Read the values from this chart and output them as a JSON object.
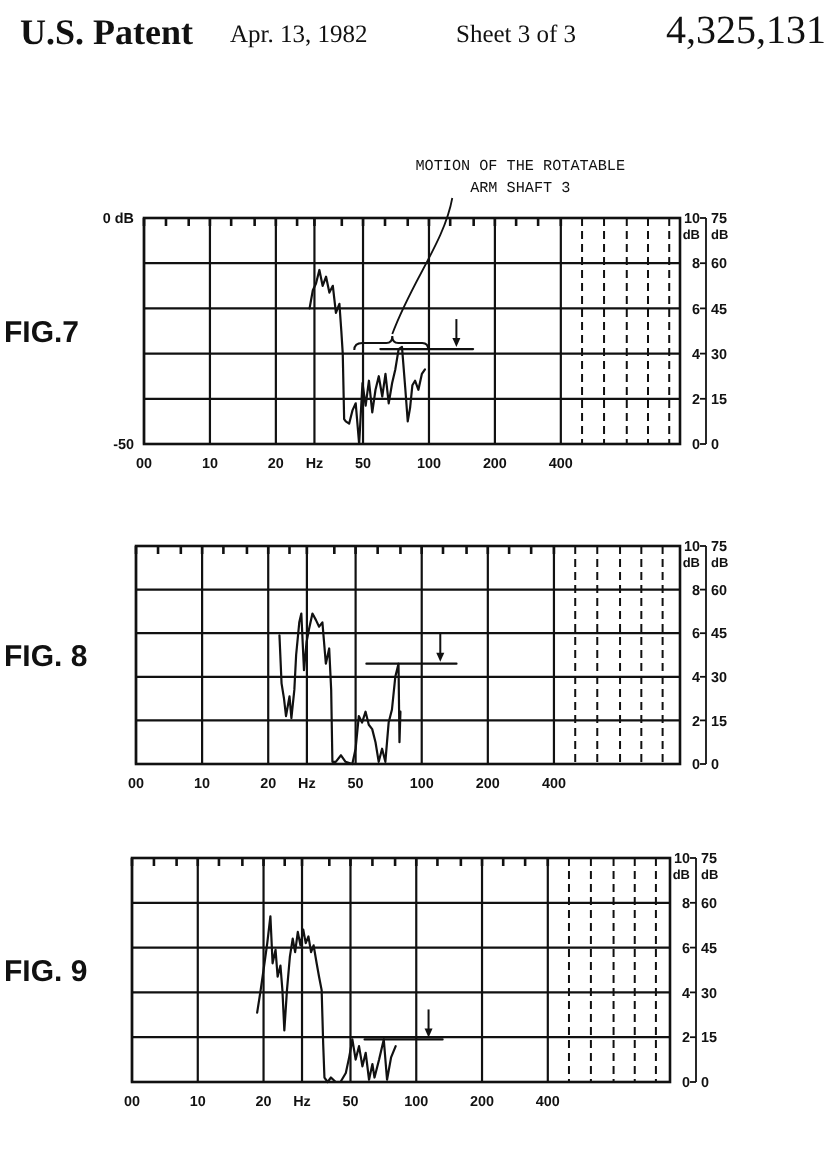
{
  "chart_data": [
    {
      "type": "line",
      "title": "FIG.7",
      "annotations": [
        "U.S. Patent",
        "Apr. 13, 1982",
        "Sheet 3 of 3",
        "4,325,131",
        {
          "text": "MOTION OF THE ROTATABLE ARM SHAFT 3",
          "x": 68,
          "y": 4.6
        }
      ],
      "log": "x",
      "xlim": [
        0,
        1400
      ],
      "xticks": [
        {
          "value": 0,
          "label": "00"
        },
        {
          "value": 6.3,
          "label": null
        },
        {
          "value": 8,
          "label": null
        },
        10,
        {
          "value": 12.5,
          "label": null
        },
        {
          "value": 16,
          "label": null
        },
        20,
        {
          "value": 25,
          "label": null
        },
        {
          "value": 30,
          "label": "Hz"
        },
        {
          "value": 40,
          "label": null
        },
        50,
        {
          "value": 63,
          "label": null
        },
        {
          "value": 80,
          "label": null
        },
        100,
        {
          "value": 125,
          "label": null
        },
        {
          "value": 160,
          "label": null
        },
        200,
        {
          "value": 250,
          "label": null
        },
        {
          "value": 315,
          "label": null
        },
        400
      ],
      "ylim": [
        0,
        10
      ],
      "yticks": [
        0,
        2,
        4,
        6,
        8,
        10
      ],
      "ylabel": "dB",
      "y2lim": [
        0,
        75
      ],
      "y2ticks": [
        0,
        15,
        30,
        45,
        60,
        75
      ],
      "y2label": "dB",
      "y3lim": [
        -50,
        0
      ],
      "y3ticks": [
        -50,
        {
          "value": 0,
          "label": "0 dB"
        }
      ],
      "grid": true,
      "ref_lines": [
        {
          "axis": "x",
          "value": 500,
          "line_style": "dashed"
        },
        {
          "axis": "x",
          "value": 630,
          "line_style": "dashed"
        },
        {
          "axis": "x",
          "value": 800,
          "line_style": "dashed"
        },
        {
          "axis": "x",
          "value": 1000,
          "line_style": "dashed"
        },
        {
          "axis": "x",
          "value": 1250,
          "line_style": "dashed"
        }
      ],
      "series": [
        {
          "color": "#111111",
          "x": [
            28.5,
            29.5,
            30.5,
            31.6,
            32.7,
            33.9,
            35.1,
            36.4,
            37.6,
            39,
            39.8,
            40.4,
            41,
            41.7,
            43.2,
            44.8,
            46.3,
            48,
            49.7,
            51.4,
            53.2,
            55.1,
            57,
            59,
            61.2,
            63.3,
            65.5,
            67.9,
            70.2,
            72.7,
            75.3,
            77.9,
            80,
            82,
            84,
            86.4,
            89.5,
            92.8,
            95.9
          ],
          "values": [
            6.0,
            6.8,
            7.1,
            7.7,
            7.0,
            7.4,
            6.7,
            7.0,
            5.8,
            6.2,
            5.0,
            4.0,
            1.1,
            1.0,
            0.9,
            1.5,
            1.8,
            0,
            2.7,
            1.7,
            2.8,
            1.4,
            2.4,
            3.0,
            2.1,
            3.1,
            1.8,
            2.7,
            3.3,
            4.2,
            4.3,
            2.5,
            1.0,
            1.6,
            2.6,
            2.8,
            2.4,
            3.1,
            3.3
          ]
        },
        {
          "color": "#111111",
          "x": [
            60,
            159
          ],
          "values": [
            4.2,
            4.2
          ]
        }
      ]
    },
    {
      "type": "line",
      "title": "FIG. 8",
      "log": "x",
      "xlim": [
        0,
        1500
      ],
      "xticks": [
        {
          "value": 0,
          "label": "00"
        },
        {
          "value": 6.3,
          "label": null
        },
        {
          "value": 8,
          "label": null
        },
        10,
        {
          "value": 12.5,
          "label": null
        },
        {
          "value": 16,
          "label": null
        },
        20,
        {
          "value": 25,
          "label": null
        },
        {
          "value": 30,
          "label": "Hz"
        },
        {
          "value": 40,
          "label": null
        },
        50,
        {
          "value": 63,
          "label": null
        },
        {
          "value": 80,
          "label": null
        },
        100,
        {
          "value": 125,
          "label": null
        },
        {
          "value": 160,
          "label": null
        },
        200,
        {
          "value": 250,
          "label": null
        },
        {
          "value": 315,
          "label": null
        },
        400
      ],
      "ylim": [
        0,
        10
      ],
      "yticks": [
        0,
        2,
        4,
        6,
        8,
        10
      ],
      "ylabel": "dB",
      "y2lim": [
        0,
        75
      ],
      "y2ticks": [
        0,
        15,
        30,
        45,
        60,
        75
      ],
      "y2label": "dB",
      "grid": true,
      "ref_lines": [
        {
          "axis": "x",
          "value": 500,
          "line_style": "dashed"
        },
        {
          "axis": "x",
          "value": 630,
          "line_style": "dashed"
        },
        {
          "axis": "x",
          "value": 800,
          "line_style": "dashed"
        },
        {
          "axis": "x",
          "value": 1000,
          "line_style": "dashed"
        },
        {
          "axis": "x",
          "value": 1250,
          "line_style": "dashed"
        }
      ],
      "series": [
        {
          "color": "#111111",
          "x": [
            22.5,
            23,
            23.6,
            24.1,
            25,
            25.5,
            26.3,
            26.8,
            27.7,
            28.3,
            29.1,
            29.9,
            30.7,
            31.8,
            33,
            34.1,
            35.3,
            36.6,
            37.9,
            38.7,
            39.2,
            40.6,
            42.9,
            45,
            48.3,
            50,
            51.7,
            53.5,
            55.5,
            57.4,
            59.5,
            61.6,
            63.7,
            66,
            68.3,
            70.7,
            73.2,
            75.8,
            78.4,
            79.2,
            80
          ],
          "values": [
            5.9,
            3.7,
            3.0,
            2.2,
            3.1,
            2.1,
            3.4,
            5.0,
            6.5,
            6.9,
            4.3,
            5.6,
            6.2,
            6.9,
            6.6,
            6.3,
            6.5,
            4.6,
            5.3,
            3.4,
            0.1,
            0.1,
            0.4,
            0.1,
            0,
            0.7,
            2.2,
            1.9,
            2.4,
            1.8,
            1.6,
            1.0,
            0.1,
            0.7,
            0.1,
            1.9,
            2.5,
            4.0,
            4.6,
            1.0,
            2.4
          ]
        },
        {
          "color": "#111111",
          "x": [
            56,
            144
          ],
          "values": [
            4.6,
            4.6
          ]
        }
      ]
    },
    {
      "type": "line",
      "title": "FIG. 9",
      "log": "x",
      "xlim": [
        0,
        1450
      ],
      "xticks": [
        {
          "value": 0,
          "label": "00"
        },
        {
          "value": 6.3,
          "label": null
        },
        {
          "value": 8,
          "label": null
        },
        10,
        {
          "value": 12.5,
          "label": null
        },
        {
          "value": 16,
          "label": null
        },
        20,
        {
          "value": 25,
          "label": null
        },
        {
          "value": 30,
          "label": "Hz"
        },
        {
          "value": 40,
          "label": null
        },
        50,
        {
          "value": 63,
          "label": null
        },
        {
          "value": 80,
          "label": null
        },
        100,
        {
          "value": 125,
          "label": null
        },
        {
          "value": 160,
          "label": null
        },
        200,
        {
          "value": 250,
          "label": null
        },
        {
          "value": 315,
          "label": null
        },
        400
      ],
      "ylim": [
        0,
        10
      ],
      "yticks": [
        0,
        2,
        4,
        6,
        8,
        10
      ],
      "ylabel": "dB",
      "y2lim": [
        0,
        75
      ],
      "y2ticks": [
        0,
        15,
        30,
        45,
        60,
        75
      ],
      "y2label": "dB",
      "grid": true,
      "ref_lines": [
        {
          "axis": "x",
          "value": 500,
          "line_style": "dashed"
        },
        {
          "axis": "x",
          "value": 630,
          "line_style": "dashed"
        },
        {
          "axis": "x",
          "value": 800,
          "line_style": "dashed"
        },
        {
          "axis": "x",
          "value": 1000,
          "line_style": "dashed"
        },
        {
          "axis": "x",
          "value": 1250,
          "line_style": "dashed"
        }
      ],
      "series": [
        {
          "color": "#111111",
          "x": [
            18.7,
            19.4,
            20,
            20.8,
            21.5,
            22,
            22.7,
            23.2,
            23.9,
            24.4,
            24.9,
            25.6,
            26.4,
            27.2,
            27.9,
            28.7,
            29.5,
            30.4,
            31.2,
            32.1,
            33,
            33.9,
            35,
            35.9,
            36.9,
            37.5,
            38,
            39.3,
            40.7,
            42.8,
            45,
            47.6,
            49.3,
            51,
            52.8,
            54.7,
            56.7,
            58.7,
            60.8,
            63,
            64.4,
            67.6,
            71,
            73.5,
            76.7,
            80.5
          ],
          "values": [
            3.1,
            4.1,
            5.0,
            6.2,
            7.4,
            5.3,
            5.9,
            4.7,
            5.2,
            4.1,
            2.3,
            4.1,
            5.6,
            6.4,
            5.8,
            6.7,
            6.1,
            6.8,
            6.2,
            6.5,
            5.8,
            6.1,
            5.3,
            4.7,
            4.1,
            1.7,
            0.2,
            0,
            0.2,
            0,
            0,
            0.4,
            1.1,
            1.9,
            1.0,
            1.6,
            0.7,
            1.3,
            0.1,
            0.8,
            0.2,
            1.0,
            1.9,
            0.1,
            1.1,
            1.6
          ]
        },
        {
          "color": "#111111",
          "x": [
            58,
            132
          ],
          "values": [
            1.9,
            1.9
          ]
        }
      ]
    }
  ]
}
